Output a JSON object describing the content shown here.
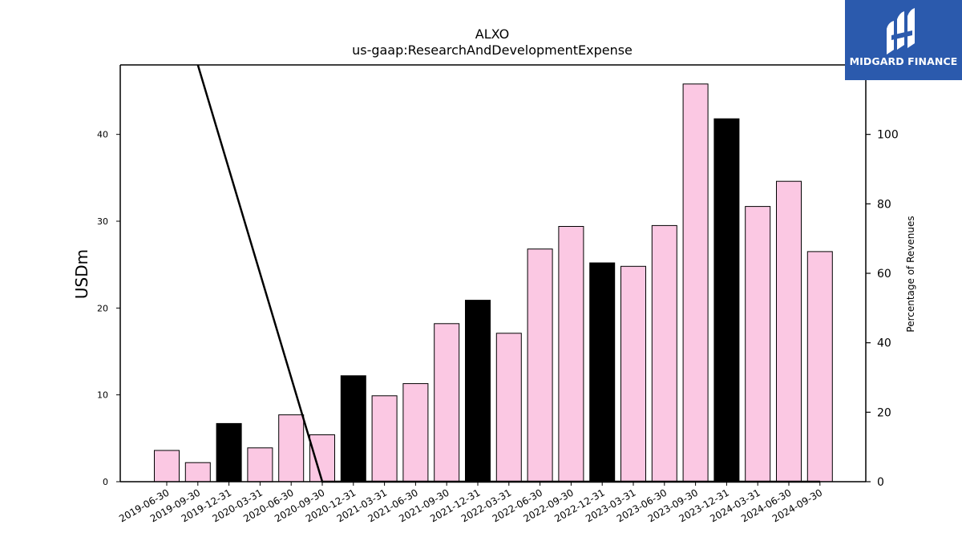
{
  "brand": {
    "name": "MIDGARD FINANCE",
    "logo_color": "#2b5aad"
  },
  "chart_data": {
    "type": "bar",
    "title": "ALXO",
    "subtitle": "us-gaap:ResearchAndDevelopmentExpense",
    "ylabel": "USDm",
    "y2label": "Percentage of Revenues",
    "ylim": [
      0,
      48
    ],
    "y2lim": [
      0,
      120
    ],
    "yticks": [
      0,
      10,
      20,
      30,
      40
    ],
    "y2ticks": [
      0,
      20,
      40,
      60,
      80,
      100
    ],
    "grid": false,
    "categories": [
      "2019-06-30",
      "2019-09-30",
      "2019-12-31",
      "2020-03-31",
      "2020-06-30",
      "2020-09-30",
      "2020-12-31",
      "2021-03-31",
      "2021-06-30",
      "2021-09-30",
      "2021-12-31",
      "2022-03-31",
      "2022-06-30",
      "2022-09-30",
      "2022-12-31",
      "2023-03-31",
      "2023-06-30",
      "2023-09-30",
      "2023-12-31",
      "2024-03-31",
      "2024-06-30",
      "2024-09-30"
    ],
    "series": [
      {
        "values": [
          3.6,
          2.2,
          6.7,
          3.9,
          7.7,
          5.4,
          12.2,
          9.9,
          11.3,
          18.2,
          20.9,
          17.1,
          26.8,
          29.4,
          25.2,
          24.8,
          29.5,
          45.8,
          41.8,
          31.7,
          34.6,
          26.5
        ],
        "highlight": [
          false,
          false,
          true,
          false,
          false,
          false,
          true,
          false,
          false,
          false,
          true,
          false,
          false,
          false,
          true,
          false,
          false,
          false,
          true,
          false,
          false,
          false
        ],
        "color": "#fbc8e3",
        "highlight_color": "#000000"
      }
    ],
    "percentage_line": {
      "axis": "right",
      "color": "#000000",
      "x": [
        "2019-09-30",
        "2020-09-30",
        "2024-09-30"
      ],
      "values": [
        120,
        0,
        0
      ]
    }
  }
}
